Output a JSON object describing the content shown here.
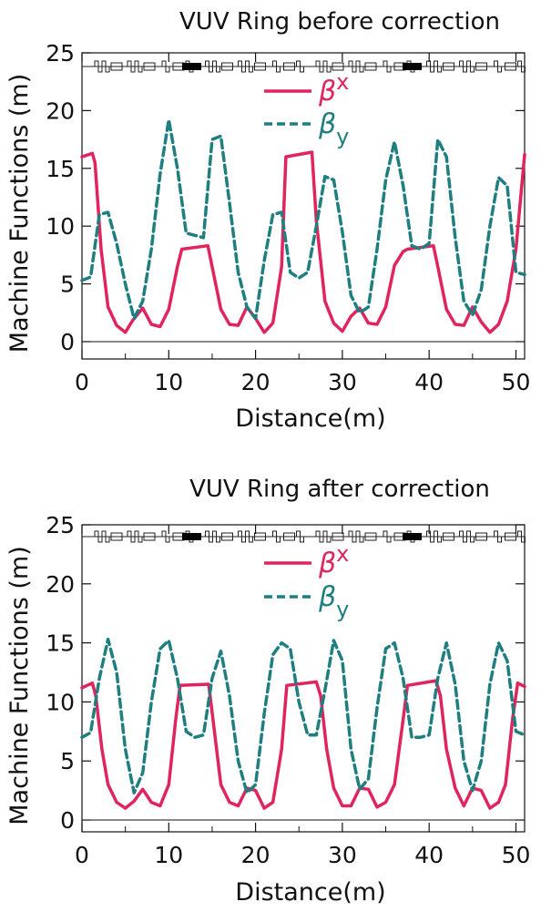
{
  "chart_data": [
    {
      "type": "line",
      "title": "VUV Ring before correction",
      "xlabel": "Distance(m)",
      "ylabel": "Machine Functions (m)",
      "xlim": [
        0,
        51
      ],
      "ylim": [
        -1.5,
        25
      ],
      "xticks": [
        "0",
        "10",
        "20",
        "30",
        "40",
        "50"
      ],
      "yticks": [
        "0",
        "5",
        "10",
        "15",
        "20",
        "25"
      ],
      "legend_position": "top-center",
      "grid": false,
      "series": [
        {
          "name": "βx",
          "legend_main": "β",
          "legend_sub": "x",
          "style": "solid",
          "color": "#e0245e",
          "x": [
            0,
            1.2,
            1.5,
            2.2,
            3,
            4,
            5,
            5.8,
            7,
            8,
            9,
            10,
            11,
            11.5,
            14.5,
            15,
            16,
            17,
            18,
            19,
            20,
            21,
            22,
            23,
            23.5,
            26.5,
            27,
            28,
            29,
            30,
            31,
            32,
            33,
            34,
            35,
            36,
            37,
            37.5,
            40.5,
            41,
            42,
            43,
            44,
            45,
            46,
            47,
            48,
            49,
            50,
            51
          ],
          "y": [
            16.0,
            16.3,
            15.5,
            8.0,
            3.0,
            1.4,
            0.8,
            1.8,
            2.9,
            1.5,
            1.3,
            2.8,
            6.5,
            8.0,
            8.3,
            6.5,
            2.8,
            1.5,
            1.4,
            3.0,
            2.0,
            0.8,
            1.6,
            6.5,
            16.0,
            16.4,
            10.5,
            3.5,
            1.6,
            0.9,
            2.2,
            2.9,
            1.6,
            1.5,
            3.0,
            6.6,
            7.8,
            8.0,
            8.3,
            6.5,
            2.8,
            1.5,
            1.4,
            3.0,
            1.7,
            0.8,
            1.5,
            3.5,
            8.0,
            16.2
          ]
        },
        {
          "name": "βy",
          "legend_main": "β",
          "legend_sub": "y",
          "style": "dashed",
          "color": "#1f7f80",
          "x": [
            0,
            1,
            2,
            3,
            4,
            5,
            6,
            7,
            8,
            9,
            10,
            11,
            12,
            13,
            14,
            15,
            16,
            17,
            18,
            19,
            20,
            21,
            22,
            23,
            24,
            25,
            26,
            27,
            28,
            29,
            30,
            31,
            32,
            33,
            34,
            35,
            36,
            37,
            38,
            39,
            40,
            41,
            42,
            43,
            44,
            45,
            46,
            47,
            48,
            49,
            50,
            51
          ],
          "y": [
            5.3,
            5.6,
            11.0,
            11.2,
            8.5,
            5.0,
            2.0,
            3.5,
            8.0,
            14.5,
            19.2,
            15.0,
            9.4,
            9.2,
            9.0,
            17.5,
            17.8,
            12.0,
            6.0,
            3.0,
            2.0,
            7.0,
            11.0,
            11.2,
            6.0,
            5.5,
            6.0,
            10.0,
            14.3,
            14.0,
            9.5,
            4.0,
            2.5,
            3.0,
            8.0,
            14.0,
            17.3,
            13.5,
            8.3,
            8.0,
            8.5,
            17.5,
            16.0,
            9.0,
            3.5,
            2.3,
            4.5,
            10.0,
            14.2,
            13.5,
            6.0,
            5.8
          ]
        }
      ]
    },
    {
      "type": "line",
      "title": "VUV Ring after correction",
      "xlabel": "Distance(m)",
      "ylabel": "Machine Functions (m)",
      "xlim": [
        0,
        51
      ],
      "ylim": [
        -1,
        25
      ],
      "xticks": [
        "0",
        "10",
        "20",
        "30",
        "40",
        "50"
      ],
      "yticks": [
        "0",
        "5",
        "10",
        "15",
        "20",
        "25"
      ],
      "legend_position": "top-center",
      "grid": false,
      "series": [
        {
          "name": "βx",
          "legend_main": "β",
          "legend_sub": "x",
          "style": "solid",
          "color": "#e0245e",
          "x": [
            0,
            1.2,
            1.6,
            2.3,
            3,
            4,
            5,
            6,
            7,
            8,
            9,
            10,
            10.8,
            11.3,
            14.6,
            15.1,
            16,
            17,
            18,
            19,
            20,
            21,
            22,
            23,
            23.6,
            27,
            27.5,
            28.2,
            29,
            30,
            31,
            32,
            33,
            34,
            35,
            36,
            37,
            37.5,
            40.8,
            41.3,
            42,
            43,
            44,
            45,
            46,
            47,
            48,
            48.8,
            49.6,
            50.2,
            51
          ],
          "y": [
            11.2,
            11.6,
            10.5,
            6.0,
            3.0,
            1.5,
            1.0,
            1.6,
            2.6,
            1.5,
            1.2,
            3.0,
            8.5,
            11.4,
            11.5,
            8.5,
            3.0,
            1.5,
            1.2,
            2.7,
            2.5,
            1.0,
            1.5,
            6.0,
            11.4,
            11.7,
            10.5,
            6.0,
            2.7,
            1.2,
            1.2,
            2.7,
            2.6,
            1.1,
            1.5,
            3.0,
            8.5,
            11.4,
            11.8,
            10.5,
            6.0,
            2.7,
            1.2,
            2.7,
            2.5,
            1.0,
            1.5,
            3.0,
            8.5,
            11.6,
            11.3
          ]
        },
        {
          "name": "βy",
          "legend_main": "β",
          "legend_sub": "y",
          "style": "dashed",
          "color": "#1f7f80",
          "x": [
            0,
            1,
            2,
            3,
            4,
            5,
            6,
            7,
            8,
            9,
            10,
            11,
            12,
            13,
            14,
            15,
            16,
            17,
            18,
            19,
            20,
            21,
            22,
            23,
            24,
            25,
            26,
            27,
            28,
            29,
            30,
            31,
            32,
            33,
            34,
            35,
            36,
            37,
            38,
            39,
            40,
            41,
            42,
            43,
            44,
            45,
            46,
            47,
            48,
            49,
            50,
            51
          ],
          "y": [
            7.0,
            7.4,
            12.0,
            15.3,
            12.5,
            6.0,
            2.3,
            4.0,
            10.0,
            14.5,
            15.2,
            12.0,
            7.5,
            7.0,
            7.2,
            12.0,
            14.3,
            10.5,
            5.0,
            2.3,
            3.0,
            9.0,
            14.0,
            15.0,
            14.5,
            10.0,
            7.2,
            7.2,
            11.0,
            15.2,
            13.5,
            6.0,
            2.6,
            3.5,
            9.5,
            14.5,
            15.0,
            12.0,
            7.0,
            7.0,
            7.2,
            12.0,
            15.0,
            11.5,
            5.0,
            2.5,
            5.0,
            11.5,
            15.0,
            13.5,
            7.5,
            7.2
          ]
        }
      ]
    }
  ]
}
